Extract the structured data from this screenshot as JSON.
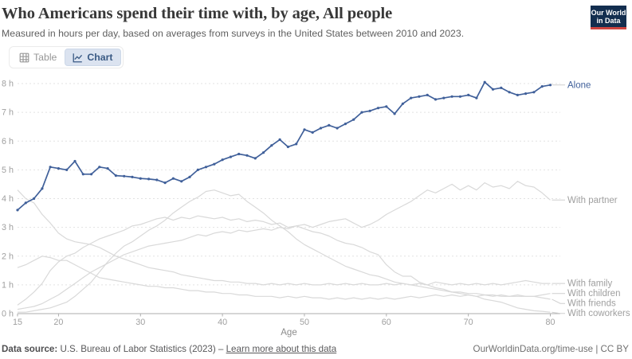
{
  "header": {
    "title": "Who Americans spend their time with, by age, All people",
    "subtitle": "Measured in hours per day, based on averages from surveys in the United States between 2010 and 2023.",
    "logo": {
      "line1": "Our World",
      "line2": "in Data",
      "navy": "#132e4f",
      "red": "#ce4540"
    }
  },
  "toolbar": {
    "table_label": "Table",
    "chart_label": "Chart",
    "active_tab": "Chart"
  },
  "chart_data": {
    "type": "line",
    "xlabel": "Age",
    "x_start": 15,
    "x_end": 80,
    "x_ticks": [
      15,
      20,
      30,
      40,
      50,
      60,
      70,
      80
    ],
    "ylim": [
      0,
      8
    ],
    "y_ticks": [
      {
        "value": 0,
        "label": "0 h"
      },
      {
        "value": 1,
        "label": "1 h"
      },
      {
        "value": 2,
        "label": "2 h"
      },
      {
        "value": 3,
        "label": "3 h"
      },
      {
        "value": 4,
        "label": "4 h"
      },
      {
        "value": 5,
        "label": "5 h"
      },
      {
        "value": 6,
        "label": "6 h"
      },
      {
        "value": 7,
        "label": "7 h"
      },
      {
        "value": 8,
        "label": "8 h"
      }
    ],
    "grid": true,
    "legend_position": "right-of-line-ends",
    "gray_line_color": "#d9d9d9",
    "accent_color": "#40609a",
    "series": [
      {
        "name": "Alone",
        "focus": true,
        "color": "#40609a",
        "values": [
          3.6,
          3.85,
          4.0,
          4.35,
          5.1,
          5.05,
          5.0,
          5.3,
          4.85,
          4.85,
          5.1,
          5.05,
          4.8,
          4.78,
          4.75,
          4.7,
          4.68,
          4.65,
          4.55,
          4.7,
          4.6,
          4.75,
          5.0,
          5.1,
          5.2,
          5.35,
          5.45,
          5.55,
          5.5,
          5.4,
          5.6,
          5.85,
          6.05,
          5.8,
          5.9,
          6.4,
          6.3,
          6.45,
          6.55,
          6.45,
          6.6,
          6.75,
          7.0,
          7.05,
          7.15,
          7.2,
          6.95,
          7.3,
          7.5,
          7.55,
          7.6,
          7.45,
          7.5,
          7.55,
          7.55,
          7.6,
          7.5,
          8.05,
          7.8,
          7.85,
          7.7,
          7.6,
          7.65,
          7.7,
          7.9,
          7.95
        ]
      },
      {
        "name": "With partner",
        "focus": false,
        "color": "#d9d9d9",
        "values": [
          0.15,
          0.2,
          0.25,
          0.35,
          0.5,
          0.65,
          0.85,
          1.05,
          1.25,
          1.45,
          1.6,
          1.75,
          1.9,
          2.05,
          2.15,
          2.25,
          2.35,
          2.4,
          2.45,
          2.5,
          2.55,
          2.65,
          2.75,
          2.7,
          2.8,
          2.85,
          2.8,
          2.9,
          2.85,
          2.9,
          2.95,
          2.9,
          3.0,
          2.95,
          3.05,
          3.1,
          3.0,
          3.1,
          3.2,
          3.25,
          3.3,
          3.15,
          3.0,
          3.1,
          3.25,
          3.45,
          3.6,
          3.75,
          3.9,
          4.1,
          4.3,
          4.2,
          4.35,
          4.5,
          4.3,
          4.45,
          4.3,
          4.55,
          4.4,
          4.45,
          4.35,
          4.6,
          4.45,
          4.4,
          4.2,
          3.95
        ]
      },
      {
        "name": "With family",
        "focus": false,
        "color": "#d9d9d9",
        "values": [
          4.3,
          4.0,
          3.85,
          3.45,
          3.15,
          2.8,
          2.6,
          2.5,
          2.45,
          2.4,
          2.3,
          2.15,
          2.0,
          1.9,
          1.8,
          1.7,
          1.6,
          1.55,
          1.5,
          1.45,
          1.35,
          1.3,
          1.25,
          1.2,
          1.15,
          1.15,
          1.1,
          1.1,
          1.05,
          1.05,
          1.0,
          1.05,
          1.0,
          1.05,
          1.0,
          1.05,
          1.0,
          1.0,
          1.05,
          1.0,
          1.05,
          1.0,
          1.05,
          1.0,
          1.0,
          1.05,
          1.0,
          1.05,
          1.0,
          1.05,
          1.0,
          1.1,
          1.05,
          1.0,
          1.05,
          1.0,
          1.05,
          1.0,
          1.05,
          1.0,
          1.05,
          1.1,
          1.15,
          1.1,
          1.05,
          1.05
        ]
      },
      {
        "name": "With children",
        "focus": false,
        "color": "#d9d9d9",
        "values": [
          0.05,
          0.05,
          0.1,
          0.15,
          0.2,
          0.3,
          0.4,
          0.6,
          0.85,
          1.1,
          1.45,
          1.8,
          2.1,
          2.35,
          2.5,
          2.7,
          2.9,
          3.05,
          3.25,
          3.5,
          3.7,
          3.9,
          4.05,
          4.25,
          4.3,
          4.2,
          4.1,
          4.15,
          3.9,
          3.7,
          3.5,
          3.25,
          3.05,
          2.85,
          2.6,
          2.4,
          2.25,
          2.1,
          1.95,
          1.8,
          1.65,
          1.55,
          1.45,
          1.35,
          1.3,
          1.2,
          1.1,
          1.05,
          1.0,
          0.95,
          0.9,
          0.85,
          0.8,
          0.75,
          0.75,
          0.7,
          0.7,
          0.65,
          0.65,
          0.6,
          0.6,
          0.6,
          0.6,
          0.6,
          0.65,
          0.7
        ]
      },
      {
        "name": "With friends",
        "focus": false,
        "color": "#d9d9d9",
        "values": [
          1.6,
          1.7,
          1.85,
          2.0,
          1.95,
          1.85,
          1.85,
          1.7,
          1.55,
          1.4,
          1.25,
          1.2,
          1.15,
          1.1,
          1.05,
          1.0,
          0.95,
          0.95,
          0.9,
          0.9,
          0.85,
          0.8,
          0.8,
          0.75,
          0.75,
          0.7,
          0.7,
          0.65,
          0.65,
          0.6,
          0.6,
          0.6,
          0.55,
          0.6,
          0.55,
          0.6,
          0.55,
          0.55,
          0.5,
          0.55,
          0.5,
          0.55,
          0.5,
          0.55,
          0.5,
          0.55,
          0.5,
          0.55,
          0.6,
          0.55,
          0.6,
          0.65,
          0.6,
          0.65,
          0.6,
          0.65,
          0.6,
          0.65,
          0.6,
          0.65,
          0.6,
          0.65,
          0.6,
          0.6,
          0.55,
          0.5
        ]
      },
      {
        "name": "With coworkers",
        "focus": false,
        "color": "#d9d9d9",
        "values": [
          0.3,
          0.5,
          0.75,
          1.05,
          1.5,
          1.8,
          2.0,
          2.1,
          2.3,
          2.45,
          2.6,
          2.7,
          2.8,
          2.9,
          3.05,
          3.1,
          3.2,
          3.3,
          3.35,
          3.25,
          3.35,
          3.3,
          3.4,
          3.35,
          3.3,
          3.35,
          3.25,
          3.3,
          3.2,
          3.25,
          3.2,
          3.1,
          3.15,
          3.0,
          3.05,
          2.95,
          2.85,
          2.8,
          2.7,
          2.55,
          2.45,
          2.4,
          2.3,
          2.15,
          2.05,
          1.7,
          1.45,
          1.3,
          1.3,
          1.1,
          1.0,
          0.9,
          0.85,
          0.75,
          0.7,
          0.65,
          0.6,
          0.5,
          0.45,
          0.4,
          0.3,
          0.2,
          0.15,
          0.1,
          0.08,
          0.05
        ]
      }
    ]
  },
  "footer": {
    "datasource_prefix": "Data source:",
    "datasource_text": " U.S. Bureau of Labor Statistics (2023) – ",
    "link_text": "Learn more about this data",
    "right_text": "OurWorldinData.org/time-use | CC BY"
  }
}
